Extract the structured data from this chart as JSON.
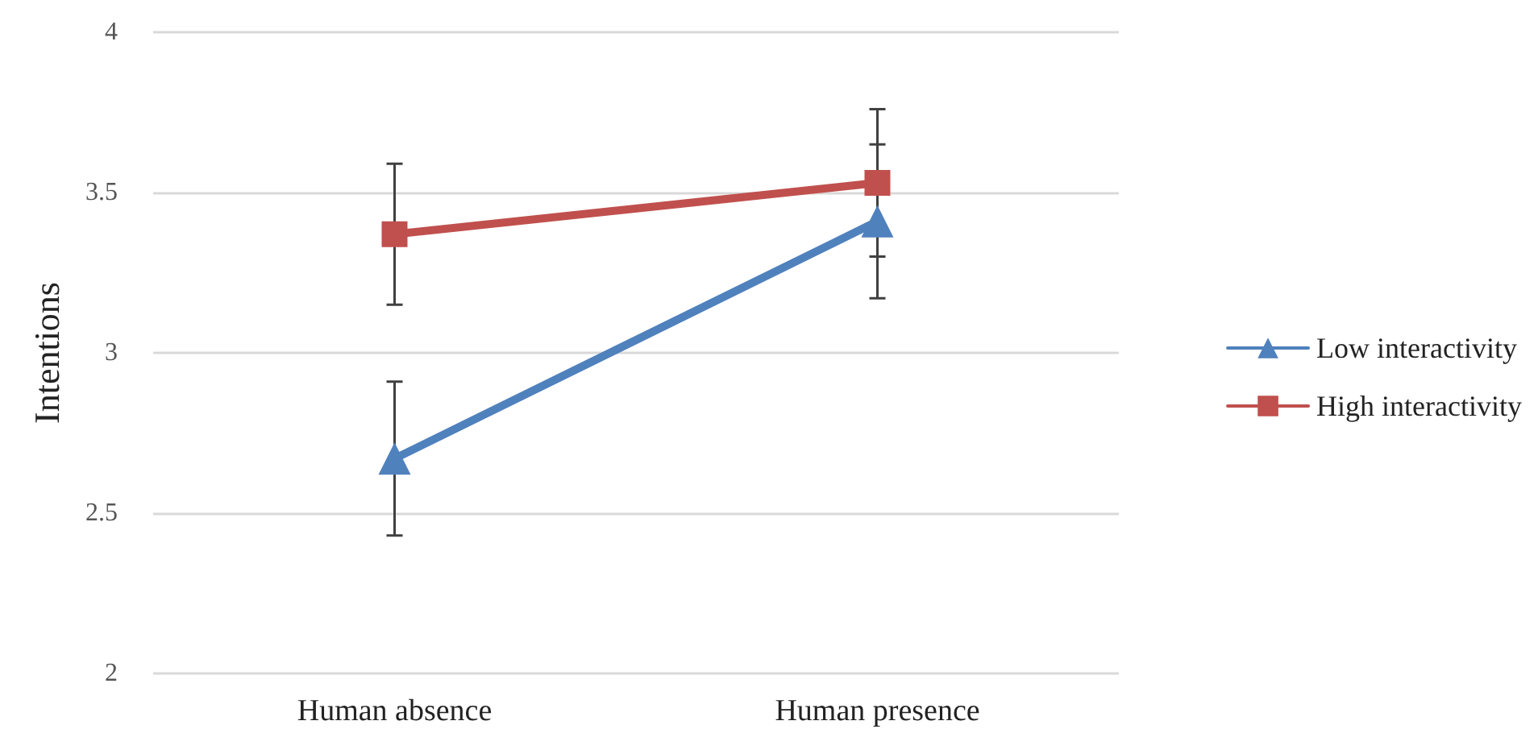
{
  "chart_data": {
    "type": "line",
    "ylabel": "Intentions",
    "categories": [
      "Human absence",
      "Human presence"
    ],
    "series": [
      {
        "name": "Low interactivity",
        "color": "#4f81bd",
        "marker": "triangle",
        "values": [
          2.67,
          3.41
        ],
        "errors": [
          0.24,
          0.24
        ]
      },
      {
        "name": "High interactivity",
        "color": "#c0504d",
        "marker": "square",
        "values": [
          3.37,
          3.53
        ],
        "errors": [
          0.22,
          0.23
        ]
      }
    ],
    "ylim": [
      2,
      4
    ],
    "yticks": [
      2,
      2.5,
      3,
      3.5,
      4
    ],
    "grid": "y",
    "legend": "right"
  }
}
